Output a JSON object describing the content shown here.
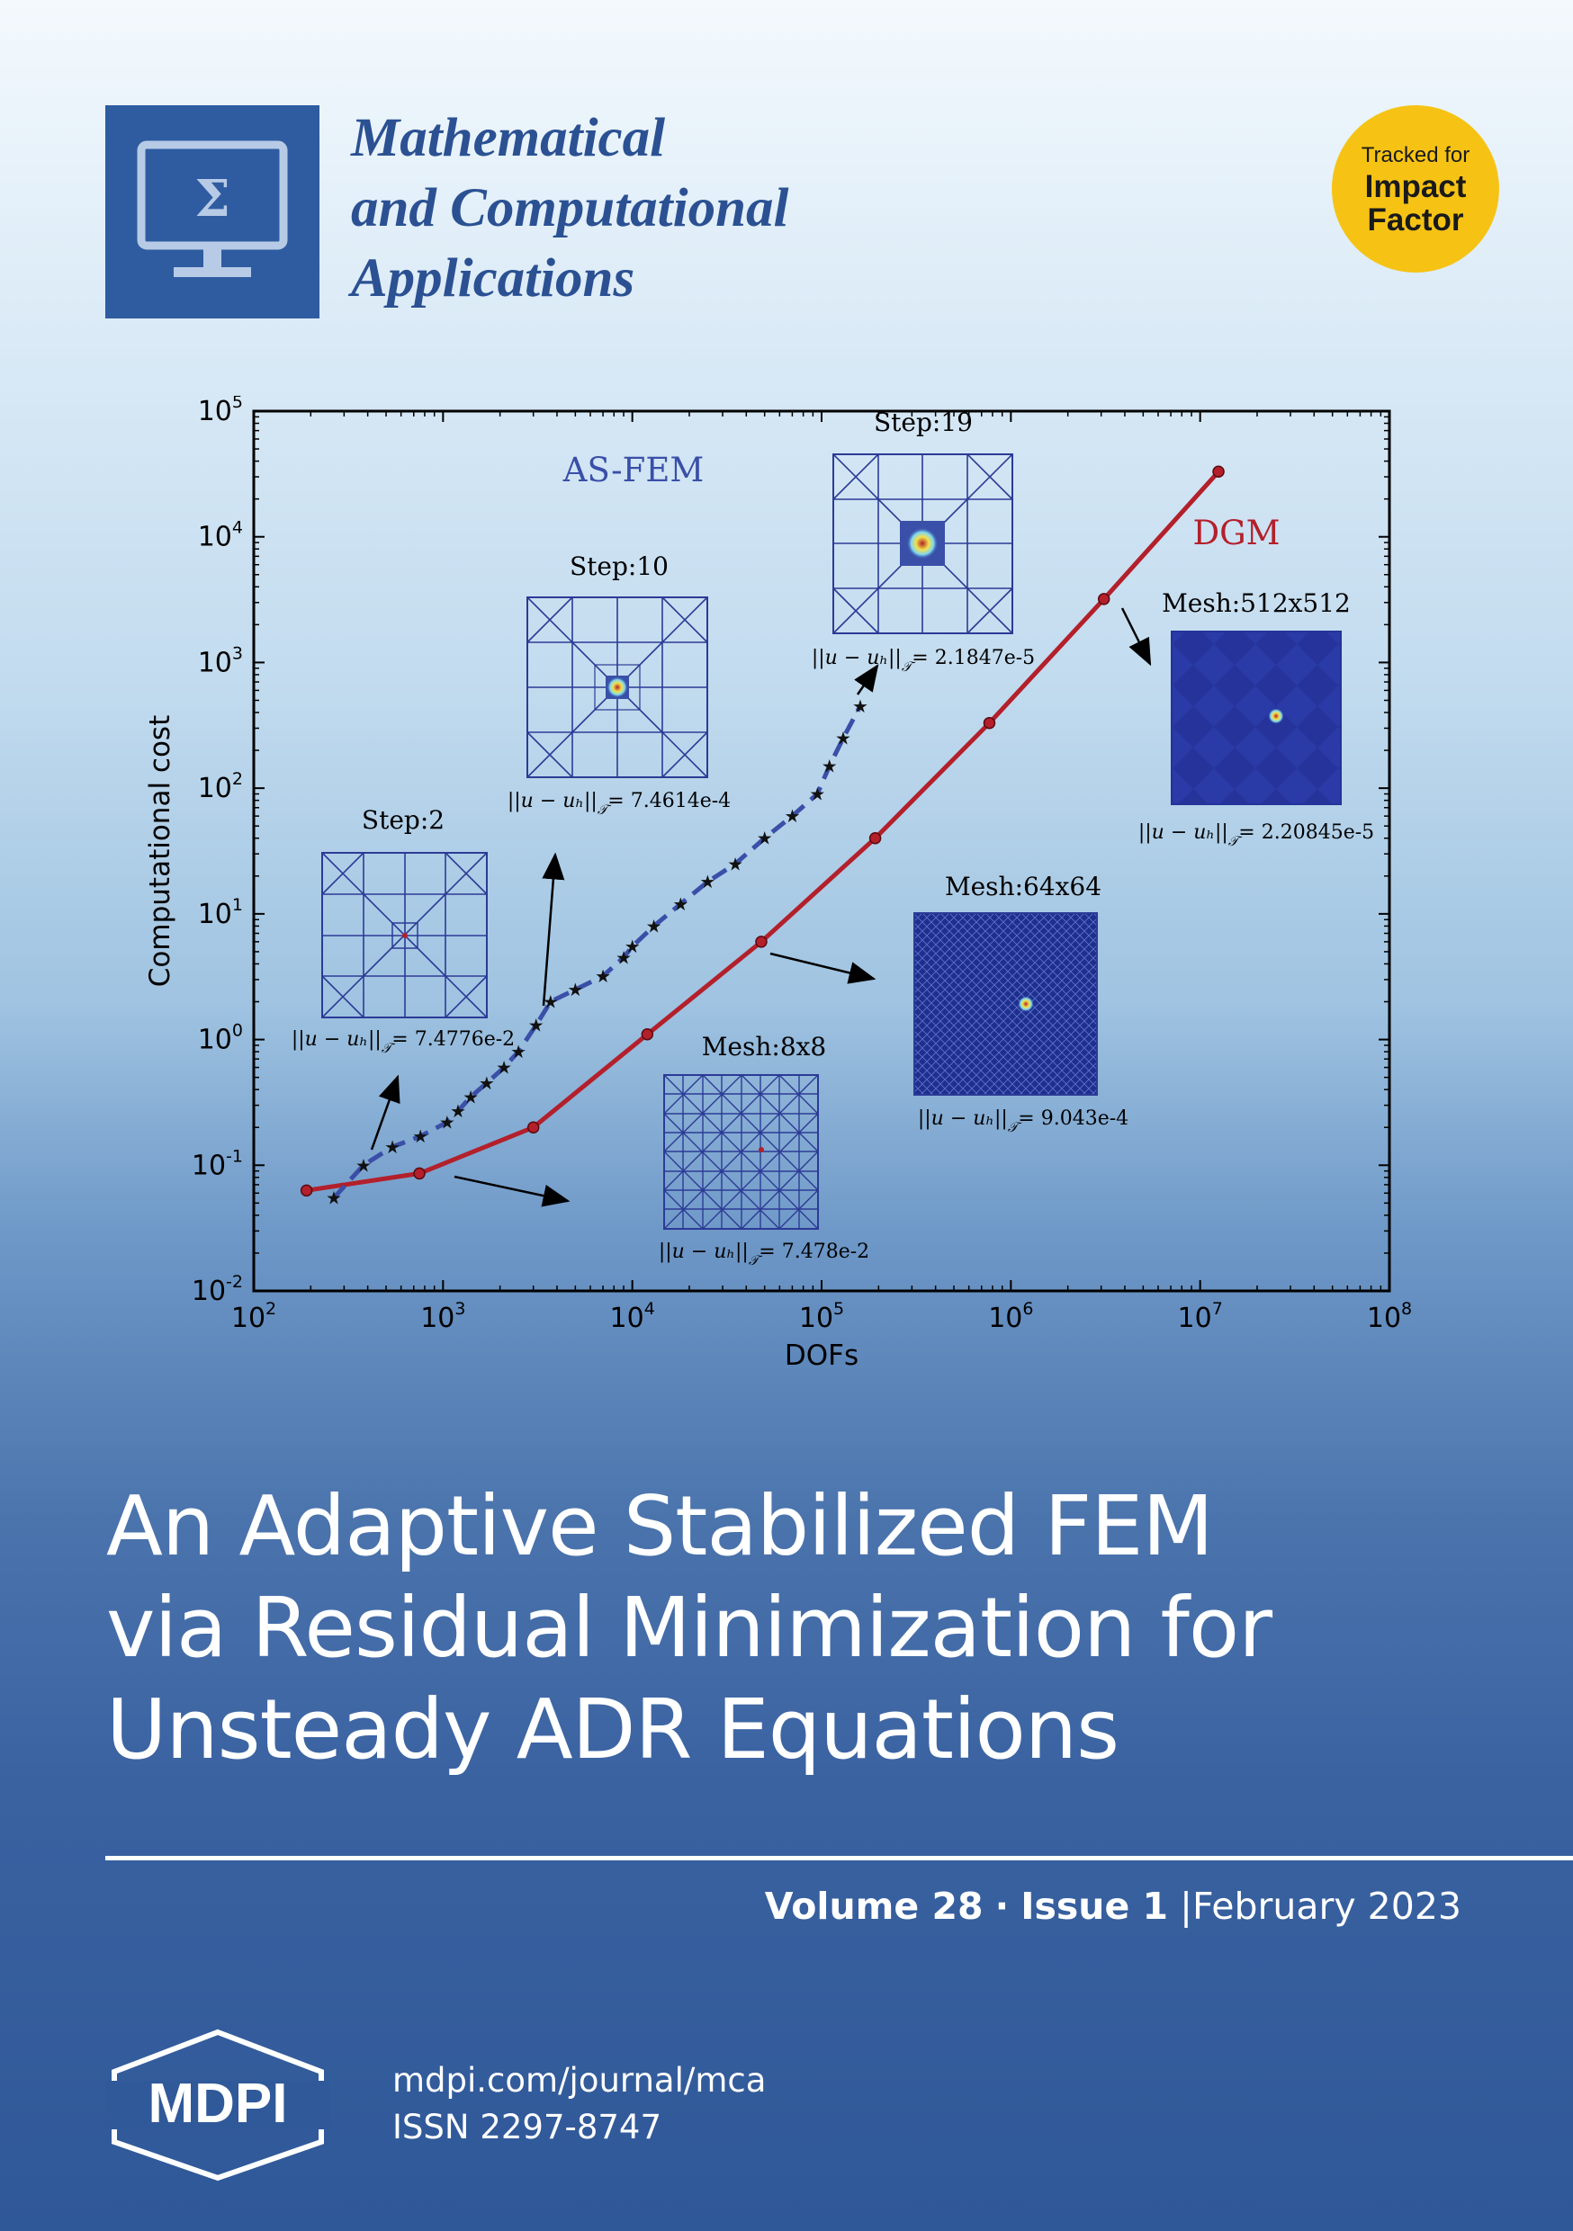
{
  "journal": {
    "title_lines": [
      "Mathematical",
      "and Computational",
      "Applications"
    ],
    "logo_symbol": "Σ"
  },
  "badge": {
    "line1": "Tracked for",
    "line2": "Impact",
    "line3": "Factor"
  },
  "article": {
    "title_lines": [
      "An Adaptive Stabilized FEM",
      "via Residual Minimization for",
      "Unsteady ADR Equations"
    ]
  },
  "issue": {
    "volume": "Volume 28",
    "separator": "·",
    "issue": "Issue 1",
    "divider": "|",
    "date": "February 2023"
  },
  "publisher": {
    "name": "MDPI",
    "url": "mdpi.com/journal/mca",
    "issn": "ISSN 2297-8747"
  },
  "colors": {
    "logo_blue": "#2f5ca1",
    "title_blue": "#2b5193",
    "badge_yellow": "#f6c315",
    "dgm_red": "#b3202b",
    "asfem_blue": "#3a4fa8"
  },
  "chart_data": {
    "type": "line",
    "xlabel": "DOFs",
    "ylabel": "Computational cost",
    "x_scale": "log",
    "y_scale": "log",
    "xlim": [
      100,
      100000000
    ],
    "ylim": [
      0.01,
      100000
    ],
    "x_ticks": [
      {
        "b": "10",
        "e": "2"
      },
      {
        "b": "10",
        "e": "3"
      },
      {
        "b": "10",
        "e": "4"
      },
      {
        "b": "10",
        "e": "5"
      },
      {
        "b": "10",
        "e": "6"
      },
      {
        "b": "10",
        "e": "7"
      },
      {
        "b": "10",
        "e": "8"
      }
    ],
    "y_ticks": [
      {
        "b": "10",
        "e": "-2"
      },
      {
        "b": "10",
        "e": "-1"
      },
      {
        "b": "10",
        "e": "0"
      },
      {
        "b": "10",
        "e": "1"
      },
      {
        "b": "10",
        "e": "2"
      },
      {
        "b": "10",
        "e": "3"
      },
      {
        "b": "10",
        "e": "4"
      },
      {
        "b": "10",
        "e": "5"
      }
    ],
    "series": [
      {
        "name": "DGM",
        "x": [
          190,
          750,
          3000,
          12000,
          48000,
          192000,
          770000,
          3100000,
          12500000
        ],
        "y": [
          0.063,
          0.086,
          0.2,
          1.1,
          6,
          40,
          330,
          3200,
          33000
        ]
      },
      {
        "name": "AS-FEM",
        "x": [
          265,
          380,
          540,
          760,
          1050,
          1200,
          1400,
          1700,
          2100,
          2500,
          3100,
          3700,
          5000,
          7000,
          9000,
          10000,
          13000,
          18000,
          25000,
          35000,
          50000,
          70000,
          95000,
          110000,
          130000,
          160000
        ],
        "y": [
          0.055,
          0.1,
          0.14,
          0.17,
          0.22,
          0.27,
          0.35,
          0.45,
          0.6,
          0.8,
          1.3,
          2,
          2.5,
          3.2,
          4.5,
          5.5,
          8,
          12,
          18,
          25,
          40,
          60,
          90,
          150,
          250,
          450
        ]
      }
    ],
    "annotations": [
      {
        "text": "Step:2",
        "error": "7.4776e-2"
      },
      {
        "text": "Step:10",
        "error": "7.4614e-4"
      },
      {
        "text": "Step:19",
        "error": "2.1847e-5"
      },
      {
        "text": "Mesh:8x8",
        "error": "7.478e-2"
      },
      {
        "text": "Mesh:64x64",
        "error": "9.043e-4"
      },
      {
        "text": "Mesh:512x512",
        "error": "2.20845e-5"
      }
    ],
    "error_label": "||u − uₕ||",
    "error_sub": "𝒯",
    "error_eq": "="
  }
}
